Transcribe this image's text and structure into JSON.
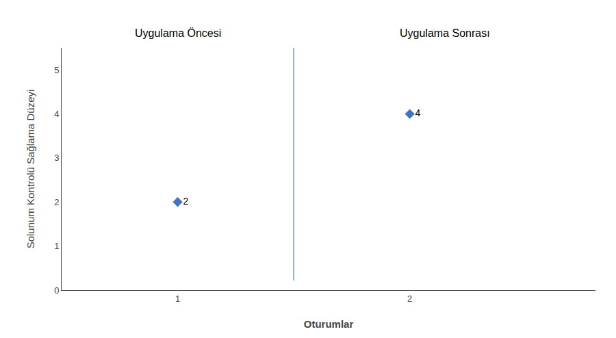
{
  "chart_data": {
    "type": "scatter",
    "x": [
      1,
      2
    ],
    "values": [
      2,
      4
    ],
    "color": "#4472C4",
    "marker": "diamond",
    "data_labels": true,
    "xlabel": "Oturumlar",
    "ylabel": "Solunum Kontrolü Sağlama Düzeyi",
    "xlim": [
      0.5,
      2.8
    ],
    "xticks": [
      1,
      2
    ],
    "ylim": [
      0,
      5.5
    ],
    "yticks": [
      0,
      1,
      2,
      3,
      4,
      5
    ],
    "grid": false,
    "divider": {
      "x": 1.5,
      "color": "#5B9BD5"
    },
    "annotations": [
      "Uygulama Öncesi",
      "Uygulama Sonrası"
    ]
  }
}
